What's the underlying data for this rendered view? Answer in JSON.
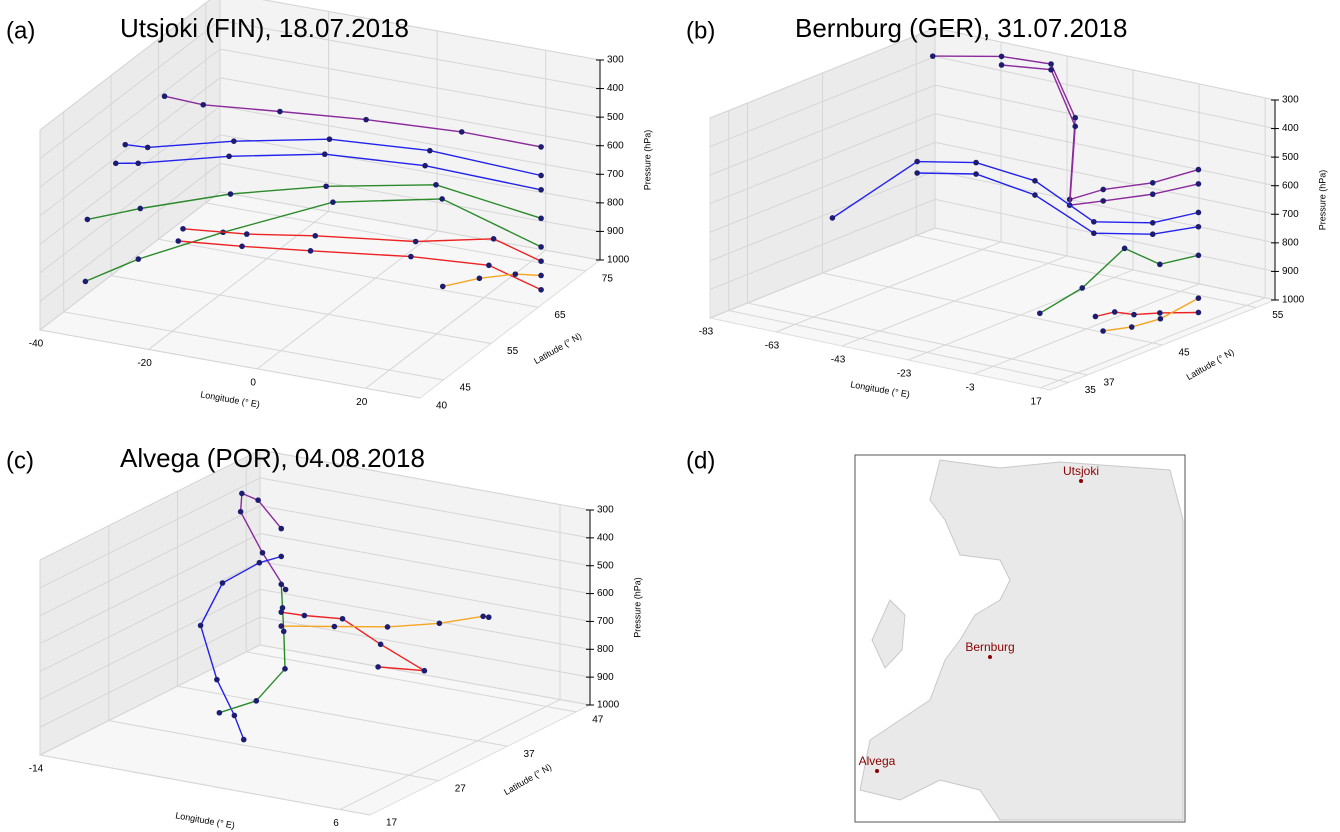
{
  "chart_data": [
    {
      "type": "line3d",
      "panel_label": "(a)",
      "title": "Utsjoki (FIN), 18.07.2018",
      "x_label": "Longitude (° E)",
      "y_label": "Latitude (° N)",
      "z_label": "Pressure (hPa)",
      "xlim": [
        -40,
        30
      ],
      "xticks": [
        -40,
        -20,
        0,
        20
      ],
      "ylim": [
        40,
        78
      ],
      "yticks": [
        40,
        45,
        55,
        65,
        75
      ],
      "zlim": [
        1000,
        300
      ],
      "zticks": [
        300,
        400,
        500,
        600,
        700,
        800,
        900,
        1000
      ],
      "series": [
        {
          "color": "#8b2a9c",
          "x": [
            27,
            15,
            0,
            -15,
            -30,
            -38
          ],
          "y": [
            69,
            66,
            63,
            62,
            63,
            64
          ],
          "values": [
            500,
            450,
            420,
            430,
            470,
            480
          ]
        },
        {
          "color": "#2222ee",
          "x": [
            27,
            10,
            -5,
            -20,
            -35,
            -40
          ],
          "y": [
            69,
            65,
            61,
            58,
            57,
            58
          ],
          "values": [
            600,
            520,
            480,
            500,
            560,
            580
          ]
        },
        {
          "color": "#2222ee",
          "x": [
            27,
            10,
            -5,
            -20,
            -35,
            -40
          ],
          "y": [
            69,
            64,
            60,
            57,
            55,
            56
          ],
          "values": [
            650,
            560,
            520,
            540,
            590,
            620
          ]
        },
        {
          "color": "#2a8a2a",
          "x": [
            27,
            12,
            -3,
            -18,
            -32,
            -40
          ],
          "y": [
            69,
            64,
            58,
            55,
            52,
            50
          ],
          "values": [
            750,
            620,
            600,
            640,
            700,
            740
          ]
        },
        {
          "color": "#2a8a2a",
          "x": [
            27,
            14,
            0,
            -15,
            -28,
            -36
          ],
          "y": [
            69,
            63,
            56,
            50,
            47,
            45
          ],
          "values": [
            850,
            650,
            620,
            700,
            800,
            880
          ]
        },
        {
          "color": "#ee2222",
          "x": [
            27,
            20,
            10,
            -5,
            -15,
            -25
          ],
          "y": [
            69,
            67,
            62,
            58,
            55,
            53
          ],
          "values": [
            900,
            820,
            800,
            780,
            770,
            760
          ]
        },
        {
          "color": "#ee2222",
          "x": [
            27,
            20,
            10,
            -5,
            -15,
            -25
          ],
          "y": [
            69,
            66,
            61,
            57,
            54,
            52
          ],
          "values": [
            1000,
            900,
            840,
            820,
            800,
            790
          ]
        },
        {
          "color": "#f5a623",
          "x": [
            27,
            24,
            20,
            15
          ],
          "y": [
            69,
            67,
            64,
            62
          ],
          "values": [
            950,
            930,
            920,
            940
          ]
        }
      ]
    },
    {
      "type": "line3d",
      "panel_label": "(b)",
      "title": "Bernburg (GER), 31.07.2018",
      "x_label": "Longitude (° E)",
      "y_label": "Latitude (° N)",
      "z_label": "Pressure (hPa)",
      "xlim": [
        -83,
        20
      ],
      "xticks": [
        -83,
        -63,
        -43,
        -23,
        -3,
        17
      ],
      "ylim": [
        33,
        57
      ],
      "yticks": [
        35,
        37,
        45,
        55
      ],
      "zlim": [
        1000,
        300
      ],
      "zticks": [
        300,
        400,
        500,
        600,
        700,
        800,
        900,
        1000
      ],
      "series": [
        {
          "color": "#8b2a9c",
          "x": [
            11,
            0,
            -15,
            -28,
            -32,
            -45,
            -60,
            -78
          ],
          "y": [
            52,
            51,
            51,
            52,
            54,
            56,
            56,
            55
          ],
          "values": [
            500,
            560,
            620,
            700,
            450,
            320,
            330,
            360
          ]
        },
        {
          "color": "#8b2a9c",
          "x": [
            11,
            0,
            -15,
            -28,
            -32,
            -45,
            -60
          ],
          "y": [
            52,
            51,
            51,
            52,
            54,
            56,
            56
          ],
          "values": [
            550,
            600,
            660,
            720,
            480,
            340,
            360
          ]
        },
        {
          "color": "#2222ee",
          "x": [
            11,
            0,
            -15,
            -30,
            -45,
            -60,
            -80
          ],
          "y": [
            52,
            51,
            50,
            49,
            48,
            47,
            45
          ],
          "values": [
            650,
            700,
            720,
            600,
            560,
            580,
            800
          ]
        },
        {
          "color": "#2222ee",
          "x": [
            11,
            0,
            -15,
            -30,
            -45,
            -60
          ],
          "y": [
            52,
            51,
            50,
            49,
            48,
            47
          ],
          "values": [
            700,
            740,
            760,
            650,
            600,
            620
          ]
        },
        {
          "color": "#2a8a2a",
          "x": [
            11,
            5,
            0,
            -10,
            -20
          ],
          "y": [
            52,
            50,
            48,
            47,
            46
          ],
          "values": [
            800,
            820,
            750,
            900,
            1000
          ]
        },
        {
          "color": "#ee2222",
          "x": [
            11,
            5,
            0,
            -3,
            -6
          ],
          "y": [
            52,
            50,
            49,
            48,
            47
          ],
          "values": [
            1000,
            990,
            995,
            980,
            990
          ]
        },
        {
          "color": "#f5a623",
          "x": [
            11,
            8,
            5,
            2
          ],
          "y": [
            52,
            49,
            47,
            45
          ],
          "values": [
            950,
            990,
            1000,
            995
          ]
        }
      ]
    },
    {
      "type": "line3d",
      "panel_label": "(c)",
      "title": "Alvega (POR), 04.08.2018",
      "x_label": "Longitude (° E)",
      "y_label": "Latitude (° N)",
      "z_label": "Pressure (hPa)",
      "xlim": [
        -14,
        8
      ],
      "xticks": [
        -14,
        6
      ],
      "ylim": [
        17,
        49
      ],
      "yticks": [
        17,
        27,
        37,
        47
      ],
      "zlim": [
        1000,
        300
      ],
      "zticks": [
        300,
        400,
        500,
        600,
        700,
        800,
        900,
        1000
      ],
      "series": [
        {
          "color": "#8b2a9c",
          "x": [
            -8,
            -10,
            -12,
            -13,
            -12,
            -10
          ],
          "y": [
            39,
            40,
            42,
            44,
            45,
            44
          ],
          "values": [
            400,
            330,
            350,
            450,
            600,
            700
          ]
        },
        {
          "color": "#2222ee",
          "x": [
            -8,
            -9,
            -11,
            -12,
            -10,
            -7,
            -5
          ],
          "y": [
            39,
            38,
            37,
            36,
            34,
            30,
            27
          ],
          "values": [
            500,
            520,
            600,
            750,
            900,
            950,
            980
          ]
        },
        {
          "color": "#2a8a2a",
          "x": [
            -8,
            -7,
            -6,
            -5,
            -6,
            -8
          ],
          "y": [
            39,
            37,
            35,
            33,
            31,
            30
          ],
          "values": [
            600,
            650,
            700,
            800,
            900,
            950
          ]
        },
        {
          "color": "#ee2222",
          "x": [
            -8,
            -6,
            -3,
            0,
            2,
            -2
          ],
          "y": [
            39,
            38,
            37,
            36,
            38,
            40
          ],
          "values": [
            700,
            680,
            650,
            700,
            800,
            850
          ]
        },
        {
          "color": "#f5a623",
          "x": [
            -8,
            -4,
            0,
            3,
            5,
            4
          ],
          "y": [
            39,
            38,
            37,
            38,
            40,
            43
          ],
          "values": [
            750,
            700,
            650,
            620,
            600,
            650
          ]
        }
      ]
    }
  ],
  "map": {
    "panel_label": "(d)",
    "places": [
      {
        "name": "Utsjoki"
      },
      {
        "name": "Bernburg"
      },
      {
        "name": "Alvega"
      }
    ]
  }
}
